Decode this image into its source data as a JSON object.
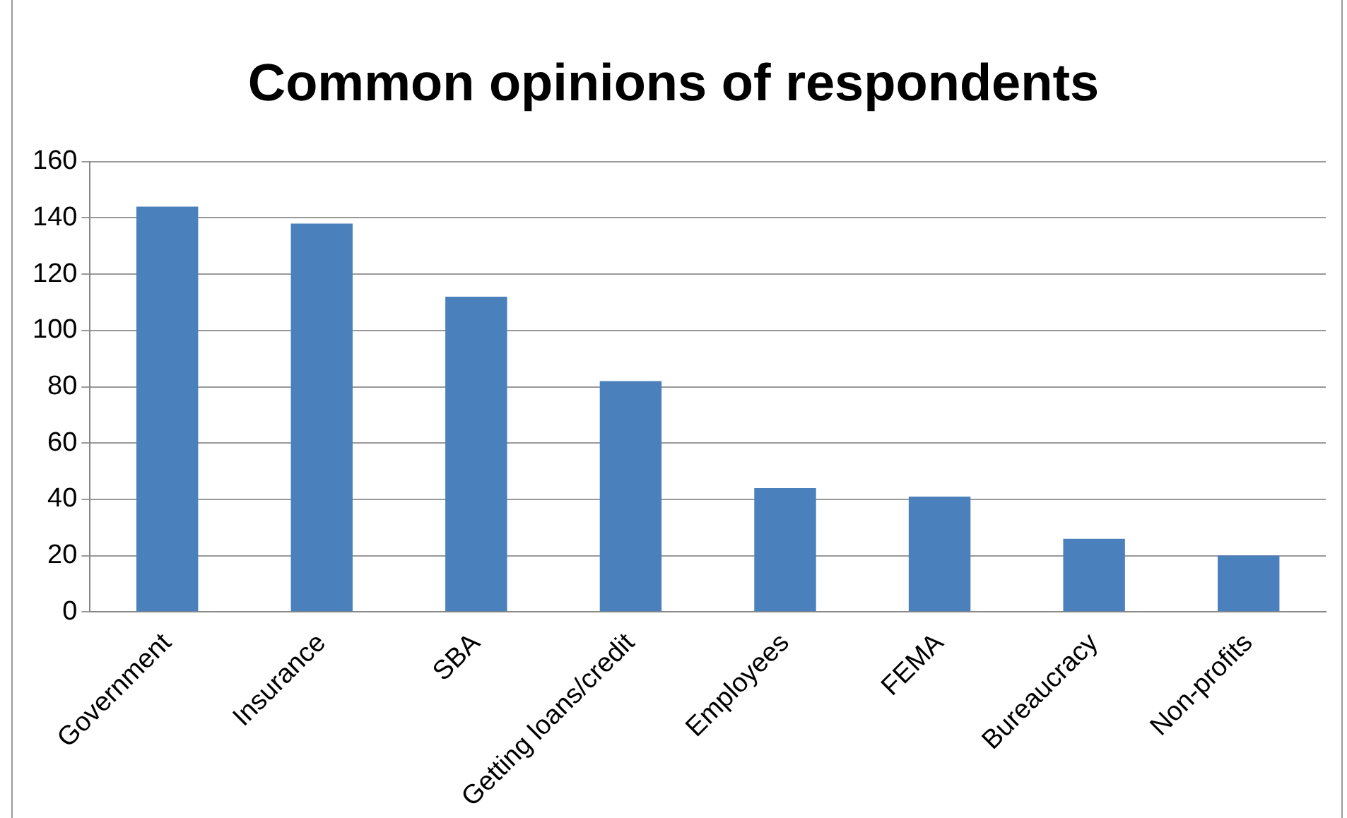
{
  "chart_data": {
    "type": "bar",
    "title": "Common opinions of respondents",
    "categories": [
      "Government",
      "Insurance",
      "SBA",
      "Getting loans/credit",
      "Employees",
      "FEMA",
      "Bureaucracy",
      "Non-profits"
    ],
    "values": [
      144,
      138,
      112,
      82,
      44,
      41,
      26,
      20
    ],
    "color": "#4a81bd",
    "ylim": [
      0,
      160
    ],
    "yticks": [
      0,
      20,
      40,
      60,
      80,
      100,
      120,
      140,
      160
    ],
    "grid": "y"
  }
}
